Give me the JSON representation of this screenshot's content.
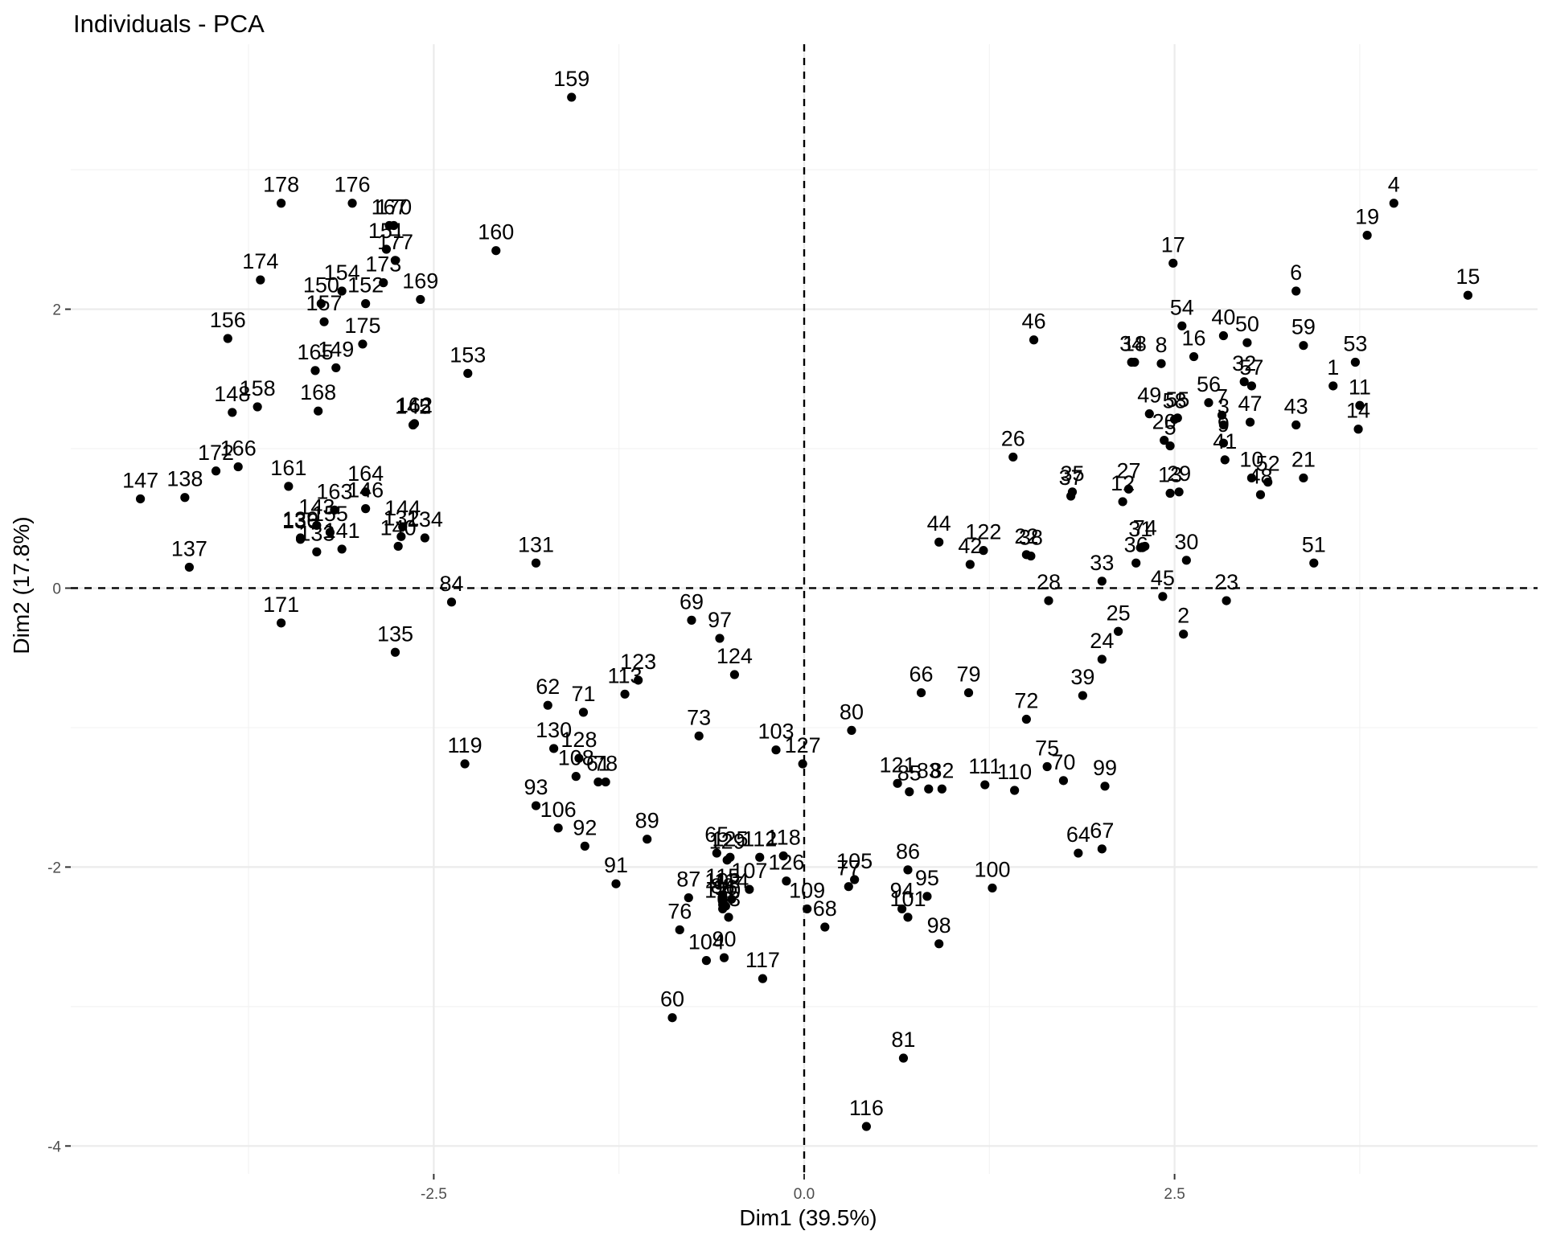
{
  "chart_data": {
    "type": "scatter",
    "title": "Individuals - PCA",
    "xlabel": "Dim1 (39.5%)",
    "ylabel": "Dim2 (17.8%)",
    "xlim": [
      -4.95,
      4.95
    ],
    "ylim": [
      -4.2,
      3.9
    ],
    "xticks": [
      -2.5,
      0.0,
      2.5
    ],
    "xtick_labels": [
      "-2.5",
      "0.0",
      "2.5"
    ],
    "yticks": [
      -4,
      -2,
      0,
      2
    ],
    "ytick_labels": [
      "-4",
      "-2",
      "0",
      "2"
    ],
    "reference_lines": {
      "x": 0,
      "y": 0,
      "style": "dashed"
    },
    "grid": true,
    "legend": "none",
    "point_color": "#000000",
    "points": [
      {
        "label": "1",
        "x": 3.57,
        "y": 1.45
      },
      {
        "label": "2",
        "x": 2.56,
        "y": -0.33
      },
      {
        "label": "3",
        "x": 2.83,
        "y": 1.17
      },
      {
        "label": "4",
        "x": 3.98,
        "y": 2.76
      },
      {
        "label": "5",
        "x": 2.47,
        "y": 1.02
      },
      {
        "label": "6",
        "x": 3.32,
        "y": 2.13
      },
      {
        "label": "7",
        "x": 2.82,
        "y": 1.24
      },
      {
        "label": "8",
        "x": 2.41,
        "y": 1.61
      },
      {
        "label": "9",
        "x": 2.83,
        "y": 1.04
      },
      {
        "label": "10",
        "x": 3.02,
        "y": 0.79
      },
      {
        "label": "11",
        "x": 3.75,
        "y": 1.31
      },
      {
        "label": "12",
        "x": 2.15,
        "y": 0.62
      },
      {
        "label": "13",
        "x": 2.47,
        "y": 0.68
      },
      {
        "label": "14",
        "x": 3.74,
        "y": 1.14
      },
      {
        "label": "15",
        "x": 4.48,
        "y": 2.1
      },
      {
        "label": "16",
        "x": 2.63,
        "y": 1.66
      },
      {
        "label": "17",
        "x": 2.49,
        "y": 2.33
      },
      {
        "label": "18",
        "x": 2.23,
        "y": 1.62
      },
      {
        "label": "19",
        "x": 3.8,
        "y": 2.53
      },
      {
        "label": "20",
        "x": 2.43,
        "y": 1.06
      },
      {
        "label": "21",
        "x": 3.37,
        "y": 0.79
      },
      {
        "label": "22",
        "x": 1.5,
        "y": 0.24
      },
      {
        "label": "23",
        "x": 2.85,
        "y": -0.09
      },
      {
        "label": "24",
        "x": 2.01,
        "y": -0.51
      },
      {
        "label": "25",
        "x": 2.12,
        "y": -0.31
      },
      {
        "label": "26",
        "x": 1.41,
        "y": 0.94
      },
      {
        "label": "27",
        "x": 2.19,
        "y": 0.71
      },
      {
        "label": "28",
        "x": 1.65,
        "y": -0.09
      },
      {
        "label": "29",
        "x": 2.53,
        "y": 0.69
      },
      {
        "label": "30",
        "x": 2.58,
        "y": 0.2
      },
      {
        "label": "31",
        "x": 2.27,
        "y": 0.29
      },
      {
        "label": "32",
        "x": 2.97,
        "y": 1.48
      },
      {
        "label": "33",
        "x": 2.01,
        "y": 0.05
      },
      {
        "label": "34",
        "x": 2.21,
        "y": 1.62
      },
      {
        "label": "35",
        "x": 1.81,
        "y": 0.69
      },
      {
        "label": "36",
        "x": 2.24,
        "y": 0.18
      },
      {
        "label": "37",
        "x": 1.8,
        "y": 0.66
      },
      {
        "label": "38",
        "x": 1.53,
        "y": 0.23
      },
      {
        "label": "39",
        "x": 1.88,
        "y": -0.77
      },
      {
        "label": "40",
        "x": 2.83,
        "y": 1.81
      },
      {
        "label": "41",
        "x": 2.84,
        "y": 0.92
      },
      {
        "label": "42",
        "x": 1.12,
        "y": 0.17
      },
      {
        "label": "43",
        "x": 3.32,
        "y": 1.17
      },
      {
        "label": "44",
        "x": 0.91,
        "y": 0.33
      },
      {
        "label": "45",
        "x": 2.42,
        "y": -0.06
      },
      {
        "label": "46",
        "x": 1.55,
        "y": 1.78
      },
      {
        "label": "47",
        "x": 3.01,
        "y": 1.19
      },
      {
        "label": "48",
        "x": 3.08,
        "y": 0.67
      },
      {
        "label": "49",
        "x": 2.33,
        "y": 1.25
      },
      {
        "label": "50",
        "x": 2.99,
        "y": 1.76
      },
      {
        "label": "51",
        "x": 3.44,
        "y": 0.18
      },
      {
        "label": "52",
        "x": 3.13,
        "y": 0.76
      },
      {
        "label": "53",
        "x": 3.72,
        "y": 1.62
      },
      {
        "label": "54",
        "x": 2.55,
        "y": 1.88
      },
      {
        "label": "55",
        "x": 2.52,
        "y": 1.22
      },
      {
        "label": "56",
        "x": 2.73,
        "y": 1.33
      },
      {
        "label": "57",
        "x": 3.02,
        "y": 1.45
      },
      {
        "label": "58",
        "x": 2.5,
        "y": 1.21
      },
      {
        "label": "59",
        "x": 3.37,
        "y": 1.74
      },
      {
        "label": "60",
        "x": -0.89,
        "y": -3.08
      },
      {
        "label": "61",
        "x": -1.39,
        "y": -1.39
      },
      {
        "label": "62",
        "x": -1.73,
        "y": -0.84
      },
      {
        "label": "63",
        "x": -0.51,
        "y": -2.36
      },
      {
        "label": "64",
        "x": 1.85,
        "y": -1.9
      },
      {
        "label": "65",
        "x": -0.59,
        "y": -1.9
      },
      {
        "label": "66",
        "x": 0.79,
        "y": -0.75
      },
      {
        "label": "67",
        "x": 2.01,
        "y": -1.87
      },
      {
        "label": "68",
        "x": 0.14,
        "y": -2.43
      },
      {
        "label": "69",
        "x": -0.76,
        "y": -0.23
      },
      {
        "label": "70",
        "x": 1.75,
        "y": -1.38
      },
      {
        "label": "71",
        "x": -1.49,
        "y": -0.89
      },
      {
        "label": "72",
        "x": 1.5,
        "y": -0.94
      },
      {
        "label": "73",
        "x": -0.71,
        "y": -1.06
      },
      {
        "label": "74",
        "x": 2.3,
        "y": 0.3
      },
      {
        "label": "75",
        "x": 1.64,
        "y": -1.28
      },
      {
        "label": "76",
        "x": -0.84,
        "y": -2.45
      },
      {
        "label": "77",
        "x": 0.3,
        "y": -2.14
      },
      {
        "label": "78",
        "x": -1.34,
        "y": -1.39
      },
      {
        "label": "79",
        "x": 1.11,
        "y": -0.75
      },
      {
        "label": "80",
        "x": 0.32,
        "y": -1.02
      },
      {
        "label": "81",
        "x": 0.67,
        "y": -3.37
      },
      {
        "label": "82",
        "x": 0.93,
        "y": -1.44
      },
      {
        "label": "83",
        "x": 0.84,
        "y": -1.44
      },
      {
        "label": "84",
        "x": -2.38,
        "y": -0.1
      },
      {
        "label": "85",
        "x": 0.71,
        "y": -1.46
      },
      {
        "label": "86",
        "x": 0.7,
        "y": -2.02
      },
      {
        "label": "87",
        "x": -0.78,
        "y": -2.22
      },
      {
        "label": "88",
        "x": -0.55,
        "y": -2.27
      },
      {
        "label": "89",
        "x": -1.06,
        "y": -1.8
      },
      {
        "label": "90",
        "x": -0.54,
        "y": -2.65
      },
      {
        "label": "91",
        "x": -1.27,
        "y": -2.12
      },
      {
        "label": "92",
        "x": -1.48,
        "y": -1.85
      },
      {
        "label": "93",
        "x": -1.81,
        "y": -1.56
      },
      {
        "label": "94",
        "x": 0.66,
        "y": -2.3
      },
      {
        "label": "95",
        "x": 0.83,
        "y": -2.21
      },
      {
        "label": "96",
        "x": -0.53,
        "y": -2.28
      },
      {
        "label": "97",
        "x": -0.57,
        "y": -0.36
      },
      {
        "label": "98",
        "x": 0.91,
        "y": -2.55
      },
      {
        "label": "99",
        "x": 2.03,
        "y": -1.42
      },
      {
        "label": "100",
        "x": 1.27,
        "y": -2.15
      },
      {
        "label": "101",
        "x": 0.7,
        "y": -2.36
      },
      {
        "label": "102",
        "x": -0.55,
        "y": -2.23
      },
      {
        "label": "103",
        "x": -0.19,
        "y": -1.16
      },
      {
        "label": "104",
        "x": -0.66,
        "y": -2.67
      },
      {
        "label": "105",
        "x": 0.34,
        "y": -2.09
      },
      {
        "label": "106",
        "x": -1.66,
        "y": -1.72
      },
      {
        "label": "107",
        "x": -0.37,
        "y": -2.16
      },
      {
        "label": "108",
        "x": -1.54,
        "y": -1.35
      },
      {
        "label": "109",
        "x": 0.02,
        "y": -2.3
      },
      {
        "label": "110",
        "x": 1.42,
        "y": -1.45
      },
      {
        "label": "111",
        "x": 1.22,
        "y": -1.41
      },
      {
        "label": "112",
        "x": -0.3,
        "y": -1.93
      },
      {
        "label": "113",
        "x": -1.21,
        "y": -0.76
      },
      {
        "label": "114",
        "x": -0.49,
        "y": -2.23
      },
      {
        "label": "115",
        "x": -0.55,
        "y": -2.2
      },
      {
        "label": "116",
        "x": 0.42,
        "y": -3.86
      },
      {
        "label": "117",
        "x": -0.28,
        "y": -2.8
      },
      {
        "label": "118",
        "x": -0.14,
        "y": -1.92
      },
      {
        "label": "119",
        "x": -2.29,
        "y": -1.26
      },
      {
        "label": "120",
        "x": -0.55,
        "y": -2.3
      },
      {
        "label": "121",
        "x": 0.63,
        "y": -1.4
      },
      {
        "label": "122",
        "x": 1.21,
        "y": 0.27
      },
      {
        "label": "123",
        "x": -1.12,
        "y": -0.66
      },
      {
        "label": "124",
        "x": -0.47,
        "y": -0.62
      },
      {
        "label": "125",
        "x": -0.5,
        "y": -1.93
      },
      {
        "label": "126",
        "x": -0.12,
        "y": -2.1
      },
      {
        "label": "127",
        "x": -0.01,
        "y": -1.26
      },
      {
        "label": "128",
        "x": -1.52,
        "y": -1.22
      },
      {
        "label": "129",
        "x": -0.52,
        "y": -1.95
      },
      {
        "label": "130",
        "x": -1.69,
        "y": -1.15
      },
      {
        "label": "131",
        "x": -1.81,
        "y": 0.18
      },
      {
        "label": "132",
        "x": -2.72,
        "y": 0.37
      },
      {
        "label": "133",
        "x": -3.29,
        "y": 0.26
      },
      {
        "label": "134",
        "x": -2.56,
        "y": 0.36
      },
      {
        "label": "135",
        "x": -2.76,
        "y": -0.46
      },
      {
        "label": "136",
        "x": -3.4,
        "y": 0.35
      },
      {
        "label": "137",
        "x": -4.15,
        "y": 0.15
      },
      {
        "label": "138",
        "x": -4.18,
        "y": 0.65
      },
      {
        "label": "139",
        "x": -3.4,
        "y": 0.36
      },
      {
        "label": "140",
        "x": -2.74,
        "y": 0.3
      },
      {
        "label": "141",
        "x": -3.12,
        "y": 0.28
      },
      {
        "label": "142",
        "x": -2.64,
        "y": 1.17
      },
      {
        "label": "143",
        "x": -3.29,
        "y": 0.45
      },
      {
        "label": "144",
        "x": -2.71,
        "y": 0.44
      },
      {
        "label": "145",
        "x": -2.64,
        "y": 1.17
      },
      {
        "label": "146",
        "x": -2.96,
        "y": 0.57
      },
      {
        "label": "147",
        "x": -4.48,
        "y": 0.64
      },
      {
        "label": "148",
        "x": -3.86,
        "y": 1.26
      },
      {
        "label": "149",
        "x": -3.16,
        "y": 1.58
      },
      {
        "label": "150",
        "x": -3.26,
        "y": 2.04
      },
      {
        "label": "151",
        "x": -2.82,
        "y": 2.43
      },
      {
        "label": "152",
        "x": -2.96,
        "y": 2.04
      },
      {
        "label": "153",
        "x": -2.27,
        "y": 1.54
      },
      {
        "label": "154",
        "x": -3.12,
        "y": 2.13
      },
      {
        "label": "155",
        "x": -3.2,
        "y": 0.4
      },
      {
        "label": "156",
        "x": -3.89,
        "y": 1.79
      },
      {
        "label": "157",
        "x": -3.24,
        "y": 1.91
      },
      {
        "label": "158",
        "x": -3.69,
        "y": 1.3
      },
      {
        "label": "159",
        "x": -1.57,
        "y": 3.52
      },
      {
        "label": "160",
        "x": -2.08,
        "y": 2.42
      },
      {
        "label": "161",
        "x": -3.48,
        "y": 0.73
      },
      {
        "label": "162",
        "x": -2.63,
        "y": 1.18
      },
      {
        "label": "163",
        "x": -3.17,
        "y": 0.56
      },
      {
        "label": "164",
        "x": -2.96,
        "y": 0.69
      },
      {
        "label": "165",
        "x": -3.3,
        "y": 1.56
      },
      {
        "label": "166",
        "x": -3.82,
        "y": 0.87
      },
      {
        "label": "167",
        "x": -2.8,
        "y": 2.6
      },
      {
        "label": "168",
        "x": -3.28,
        "y": 1.27
      },
      {
        "label": "169",
        "x": -2.59,
        "y": 2.07
      },
      {
        "label": "170",
        "x": -2.77,
        "y": 2.6
      },
      {
        "label": "171",
        "x": -3.53,
        "y": -0.25
      },
      {
        "label": "172",
        "x": -3.97,
        "y": 0.84
      },
      {
        "label": "173",
        "x": -2.84,
        "y": 2.19
      },
      {
        "label": "174",
        "x": -3.67,
        "y": 2.21
      },
      {
        "label": "175",
        "x": -2.98,
        "y": 1.75
      },
      {
        "label": "176",
        "x": -3.05,
        "y": 2.76
      },
      {
        "label": "177",
        "x": -2.76,
        "y": 2.35
      },
      {
        "label": "178",
        "x": -3.53,
        "y": 2.76
      }
    ]
  }
}
